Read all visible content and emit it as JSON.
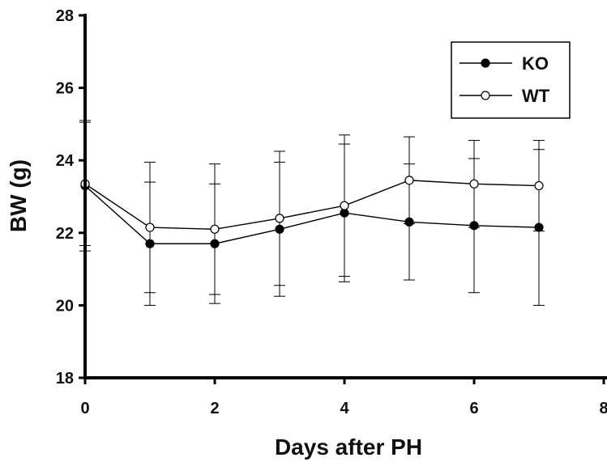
{
  "chart_data": {
    "type": "line",
    "title": "",
    "xlabel": "Days after PH",
    "ylabel": "BW (g)",
    "xlim": [
      0,
      8
    ],
    "ylim": [
      18,
      28
    ],
    "xticks": [
      0,
      2,
      4,
      6,
      8
    ],
    "yticks": [
      18,
      20,
      22,
      24,
      26,
      28
    ],
    "x": [
      0,
      1,
      2,
      3,
      4,
      5,
      6,
      7
    ],
    "grid": false,
    "legend_position": "top-right",
    "series": [
      {
        "name": "KO",
        "marker": "filled-circle",
        "color": "#000000",
        "values": [
          23.3,
          21.7,
          21.7,
          22.1,
          22.55,
          22.3,
          22.2,
          22.15
        ],
        "error": [
          1.8,
          1.7,
          1.65,
          1.85,
          1.9,
          1.6,
          1.85,
          2.15
        ]
      },
      {
        "name": "WT",
        "marker": "open-circle",
        "color": "#000000",
        "values": [
          23.35,
          22.15,
          22.1,
          22.4,
          22.75,
          23.45,
          23.35,
          23.3
        ],
        "error": [
          1.7,
          1.8,
          1.8,
          1.85,
          1.95,
          1.2,
          1.2,
          1.25
        ]
      }
    ]
  }
}
